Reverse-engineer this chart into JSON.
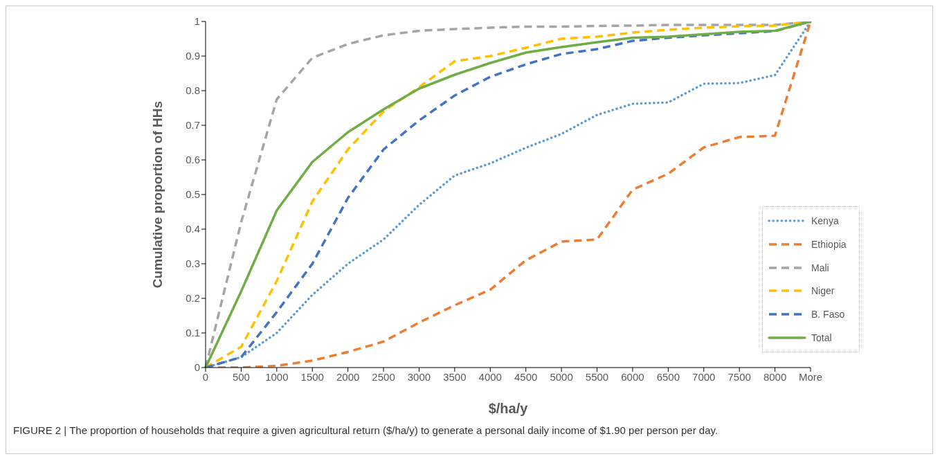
{
  "chart_data": {
    "type": "line",
    "xlabel": "$/ha/y",
    "ylabel": "Cumulative proportion of HHs",
    "categories": [
      "0",
      "500",
      "1000",
      "1500",
      "2000",
      "2500",
      "3000",
      "3500",
      "4000",
      "4500",
      "5000",
      "5500",
      "6000",
      "6500",
      "7000",
      "7500",
      "8000",
      "More"
    ],
    "series": [
      {
        "name": "Kenya",
        "color": "#5b9bd5",
        "line_style": "dotted",
        "values": [
          0,
          0.03,
          0.1,
          0.21,
          0.3,
          0.37,
          0.47,
          0.555,
          0.59,
          0.635,
          0.675,
          0.73,
          0.762,
          0.766,
          0.82,
          0.822,
          0.845,
          1
        ]
      },
      {
        "name": "Ethiopia",
        "color": "#ed7d31",
        "line_style": "dashed",
        "values": [
          0,
          0,
          0.005,
          0.02,
          0.045,
          0.075,
          0.13,
          0.18,
          0.225,
          0.31,
          0.364,
          0.37,
          0.514,
          0.56,
          0.636,
          0.666,
          0.67,
          1
        ]
      },
      {
        "name": "Mali",
        "color": "#a5a5a5",
        "line_style": "dashed",
        "values": [
          0,
          0.42,
          0.775,
          0.895,
          0.935,
          0.96,
          0.973,
          0.978,
          0.982,
          0.985,
          0.985,
          0.987,
          0.988,
          0.99,
          0.99,
          0.99,
          0.99,
          1
        ]
      },
      {
        "name": "Niger",
        "color": "#ffc000",
        "line_style": "dashed",
        "values": [
          0,
          0.06,
          0.25,
          0.48,
          0.63,
          0.74,
          0.81,
          0.885,
          0.9,
          0.924,
          0.95,
          0.956,
          0.968,
          0.976,
          0.982,
          0.986,
          0.988,
          1
        ]
      },
      {
        "name": "B. Faso",
        "color": "#4472c4",
        "line_style": "dashed",
        "values": [
          0,
          0.03,
          0.16,
          0.3,
          0.49,
          0.63,
          0.714,
          0.786,
          0.84,
          0.876,
          0.906,
          0.92,
          0.944,
          0.953,
          0.96,
          0.966,
          0.972,
          1
        ]
      },
      {
        "name": "Total",
        "color": "#70ad47",
        "line_style": "solid",
        "values": [
          0,
          0.22,
          0.454,
          0.594,
          0.68,
          0.746,
          0.806,
          0.846,
          0.88,
          0.91,
          0.926,
          0.94,
          0.953,
          0.956,
          0.963,
          0.97,
          0.973,
          1
        ]
      }
    ],
    "ylim": [
      0,
      1
    ],
    "yticks": [
      0,
      0.1,
      0.2,
      0.3,
      0.4,
      0.5,
      0.6,
      0.7,
      0.8,
      0.9,
      1
    ],
    "grid": false,
    "legend": "bottom right",
    "annotations": [
      "FIGURE 2 | The proportion of households that require a given agricultural return ($/ha/y) to generate a personal daily income of $1.90 per person per day."
    ]
  }
}
